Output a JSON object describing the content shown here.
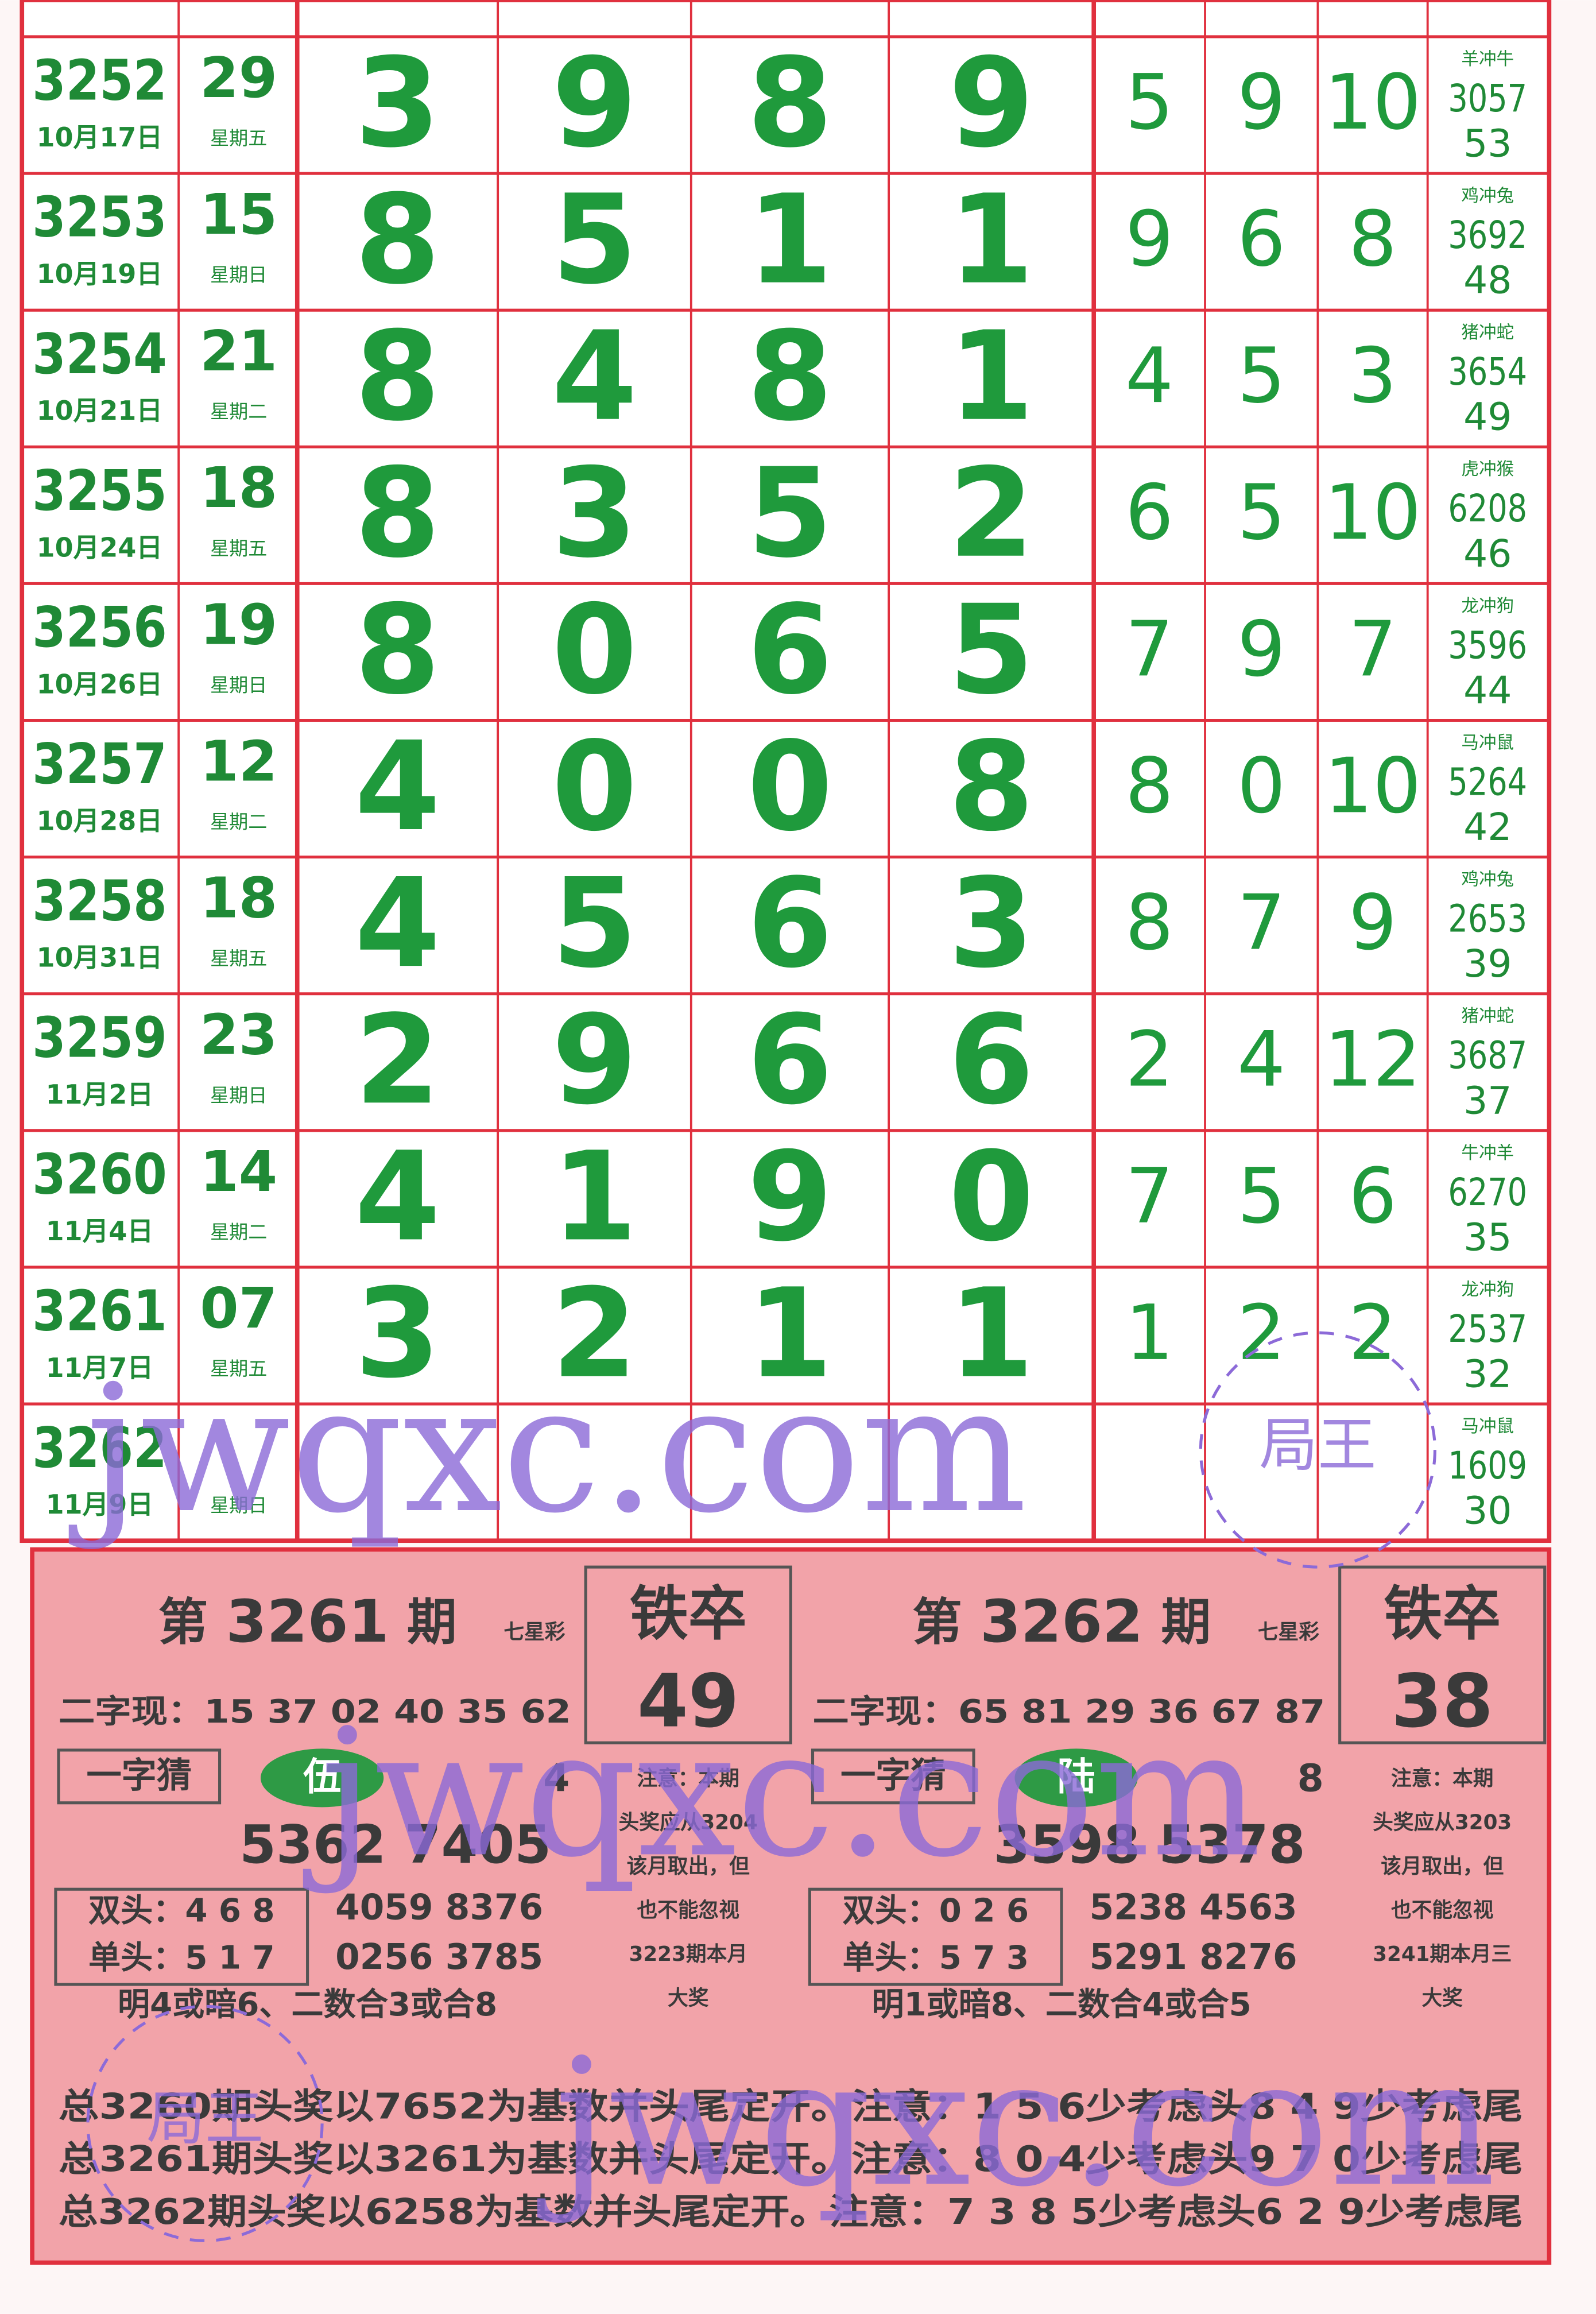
{
  "rows": [
    {
      "issue": "3252",
      "date": "10月17日",
      "num": "29",
      "weekday": "星期五",
      "digits": [
        "3",
        "9",
        "8",
        "9"
      ],
      "small": [
        "5",
        "9",
        "10"
      ],
      "zodiac": "羊冲牛",
      "code": "3057",
      "code_num": "53"
    },
    {
      "issue": "3253",
      "date": "10月19日",
      "num": "15",
      "weekday": "星期日",
      "digits": [
        "8",
        "5",
        "1",
        "1"
      ],
      "small": [
        "9",
        "6",
        "8"
      ],
      "zodiac": "鸡冲兔",
      "code": "3692",
      "code_num": "48"
    },
    {
      "issue": "3254",
      "date": "10月21日",
      "num": "21",
      "weekday": "星期二",
      "digits": [
        "8",
        "4",
        "8",
        "1"
      ],
      "small": [
        "4",
        "5",
        "3"
      ],
      "zodiac": "猪冲蛇",
      "code": "3654",
      "code_num": "49"
    },
    {
      "issue": "3255",
      "date": "10月24日",
      "num": "18",
      "weekday": "星期五",
      "digits": [
        "8",
        "3",
        "5",
        "2"
      ],
      "small": [
        "6",
        "5",
        "10"
      ],
      "zodiac": "虎冲猴",
      "code": "6208",
      "code_num": "46"
    },
    {
      "issue": "3256",
      "date": "10月26日",
      "num": "19",
      "weekday": "星期日",
      "digits": [
        "8",
        "0",
        "6",
        "5"
      ],
      "small": [
        "7",
        "9",
        "7"
      ],
      "zodiac": "龙冲狗",
      "code": "3596",
      "code_num": "44"
    },
    {
      "issue": "3257",
      "date": "10月28日",
      "num": "12",
      "weekday": "星期二",
      "digits": [
        "4",
        "0",
        "0",
        "8"
      ],
      "small": [
        "8",
        "0",
        "10"
      ],
      "zodiac": "马冲鼠",
      "code": "5264",
      "code_num": "42"
    },
    {
      "issue": "3258",
      "date": "10月31日",
      "num": "18",
      "weekday": "星期五",
      "digits": [
        "4",
        "5",
        "6",
        "3"
      ],
      "small": [
        "8",
        "7",
        "9"
      ],
      "zodiac": "鸡冲兔",
      "code": "2653",
      "code_num": "39"
    },
    {
      "issue": "3259",
      "date": "11月2日",
      "num": "23",
      "weekday": "星期日",
      "digits": [
        "2",
        "9",
        "6",
        "6"
      ],
      "small": [
        "2",
        "4",
        "12"
      ],
      "zodiac": "猪冲蛇",
      "code": "3687",
      "code_num": "37"
    },
    {
      "issue": "3260",
      "date": "11月4日",
      "num": "14",
      "weekday": "星期二",
      "digits": [
        "4",
        "1",
        "9",
        "0"
      ],
      "small": [
        "7",
        "5",
        "6"
      ],
      "zodiac": "牛冲羊",
      "code": "6270",
      "code_num": "35"
    },
    {
      "issue": "3261",
      "date": "11月7日",
      "num": "07",
      "weekday": "星期五",
      "digits": [
        "3",
        "2",
        "1",
        "1"
      ],
      "small": [
        "1",
        "2",
        "2"
      ],
      "zodiac": "龙冲狗",
      "code": "2537",
      "code_num": "32"
    },
    {
      "issue": "3262",
      "date": "11月9日",
      "weekday": "星期日",
      "zodiac": "马冲鼠",
      "code": "1609",
      "code_num": "30"
    }
  ],
  "panels": [
    {
      "prefix": "第",
      "issue": "3261",
      "suffix": "期",
      "game": "七星彩",
      "tie_label": "铁卒",
      "tie_value": "49",
      "erzi": "二字现：15 37 02 40 35 62",
      "yizi_label": "一字猜",
      "yizi_char": "伍",
      "yizi_digit": "4",
      "main_numbers": "5362 7405",
      "shuangtou": "双头：4 6 8",
      "dantou": "单头：5 1 7",
      "nums1": "4059 8376",
      "nums2": "0256 3785",
      "hint": "明4或暗6、二数合3或合8",
      "note": [
        "注意：本期",
        "头奖应从3204",
        "该月取出，但",
        "也不能忽视",
        "3223期本月",
        "大奖"
      ]
    },
    {
      "prefix": "第",
      "issue": "3262",
      "suffix": "期",
      "game": "七星彩",
      "tie_label": "铁卒",
      "tie_value": "38",
      "erzi": "二字现：65 81 29 36 67 87",
      "yizi_label": "一字猜",
      "yizi_char": "陆",
      "yizi_digit": "8",
      "main_numbers": "3598 5378",
      "shuangtou": "双头：0 2 6",
      "dantou": "单头：5 7 3",
      "nums1": "5238 4563",
      "nums2": "5291 8276",
      "hint": "明1或暗8、二数合4或合5",
      "note": [
        "注意：本期",
        "头奖应从3203",
        "该月取出，但",
        "也不能忽视",
        "3241期本月三",
        "大奖"
      ]
    }
  ],
  "summary": [
    "总3260期头奖以7652为基数并头尾定开。注意：1 5 6少考虑头8 4 9少考虑尾",
    "总3261期头奖以3261为基数并头尾定开。注意：8 0 4少考虑头9 7 0少考虑尾",
    "总3262期头奖以6258为基数并头尾定开。注意：7 3 8 5少考虑头6 2 9少考虑尾"
  ],
  "watermarks": [
    "jwqxc.com",
    "局王"
  ]
}
